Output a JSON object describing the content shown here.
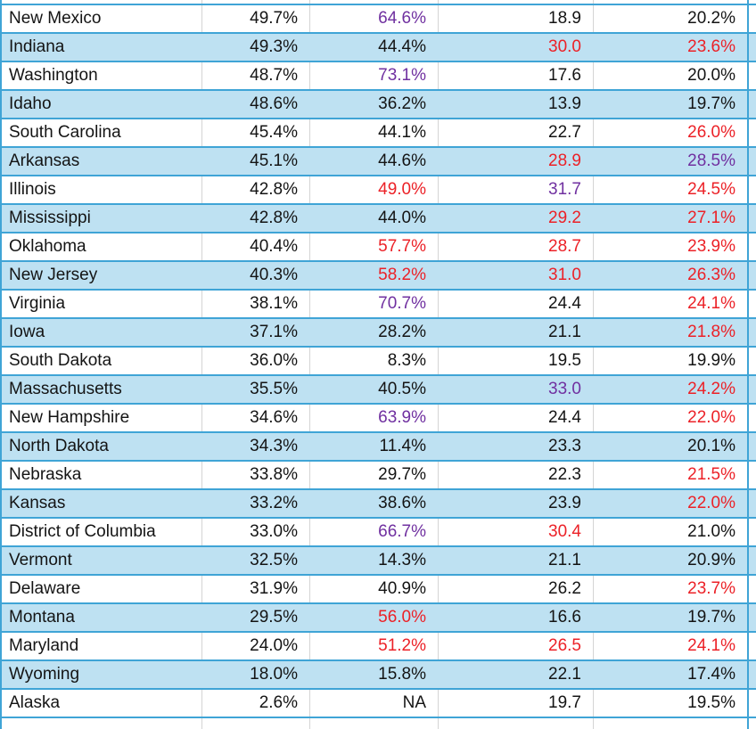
{
  "colors": {
    "row_alt_fill": "#BEE1F2",
    "grid_blue": "#3FA4D6",
    "grid_gray": "#D4D4D4",
    "text_black": "#141414",
    "text_red": "#EC2127",
    "text_purple": "#7030A0"
  },
  "table": {
    "rows": [
      {
        "state": "New Mexico",
        "cells": [
          {
            "v": "49.7%",
            "c": "black"
          },
          {
            "v": "64.6%",
            "c": "purple"
          },
          {
            "v": "18.9",
            "c": "black"
          },
          {
            "v": "20.2%",
            "c": "black"
          }
        ]
      },
      {
        "state": "Indiana",
        "cells": [
          {
            "v": "49.3%",
            "c": "black"
          },
          {
            "v": "44.4%",
            "c": "black"
          },
          {
            "v": "30.0",
            "c": "red"
          },
          {
            "v": "23.6%",
            "c": "red"
          }
        ]
      },
      {
        "state": "Washington",
        "cells": [
          {
            "v": "48.7%",
            "c": "black"
          },
          {
            "v": "73.1%",
            "c": "purple"
          },
          {
            "v": "17.6",
            "c": "black"
          },
          {
            "v": "20.0%",
            "c": "black"
          }
        ]
      },
      {
        "state": "Idaho",
        "cells": [
          {
            "v": "48.6%",
            "c": "black"
          },
          {
            "v": "36.2%",
            "c": "black"
          },
          {
            "v": "13.9",
            "c": "black"
          },
          {
            "v": "19.7%",
            "c": "black"
          }
        ]
      },
      {
        "state": "South Carolina",
        "cells": [
          {
            "v": "45.4%",
            "c": "black"
          },
          {
            "v": "44.1%",
            "c": "black"
          },
          {
            "v": "22.7",
            "c": "black"
          },
          {
            "v": "26.0%",
            "c": "red"
          }
        ]
      },
      {
        "state": "Arkansas",
        "cells": [
          {
            "v": "45.1%",
            "c": "black"
          },
          {
            "v": "44.6%",
            "c": "black"
          },
          {
            "v": "28.9",
            "c": "red"
          },
          {
            "v": "28.5%",
            "c": "purple"
          }
        ]
      },
      {
        "state": "Illinois",
        "cells": [
          {
            "v": "42.8%",
            "c": "black"
          },
          {
            "v": "49.0%",
            "c": "red"
          },
          {
            "v": "31.7",
            "c": "purple"
          },
          {
            "v": "24.5%",
            "c": "red"
          }
        ]
      },
      {
        "state": "Mississippi",
        "cells": [
          {
            "v": "42.8%",
            "c": "black"
          },
          {
            "v": "44.0%",
            "c": "black"
          },
          {
            "v": "29.2",
            "c": "red"
          },
          {
            "v": "27.1%",
            "c": "red"
          }
        ]
      },
      {
        "state": "Oklahoma",
        "cells": [
          {
            "v": "40.4%",
            "c": "black"
          },
          {
            "v": "57.7%",
            "c": "red"
          },
          {
            "v": "28.7",
            "c": "red"
          },
          {
            "v": "23.9%",
            "c": "red"
          }
        ]
      },
      {
        "state": "New Jersey",
        "cells": [
          {
            "v": "40.3%",
            "c": "black"
          },
          {
            "v": "58.2%",
            "c": "red"
          },
          {
            "v": "31.0",
            "c": "red"
          },
          {
            "v": "26.3%",
            "c": "red"
          }
        ]
      },
      {
        "state": "Virginia",
        "cells": [
          {
            "v": "38.1%",
            "c": "black"
          },
          {
            "v": "70.7%",
            "c": "purple"
          },
          {
            "v": "24.4",
            "c": "black"
          },
          {
            "v": "24.1%",
            "c": "red"
          }
        ]
      },
      {
        "state": "Iowa",
        "cells": [
          {
            "v": "37.1%",
            "c": "black"
          },
          {
            "v": "28.2%",
            "c": "black"
          },
          {
            "v": "21.1",
            "c": "black"
          },
          {
            "v": "21.8%",
            "c": "red"
          }
        ]
      },
      {
        "state": "South Dakota",
        "cells": [
          {
            "v": "36.0%",
            "c": "black"
          },
          {
            "v": "8.3%",
            "c": "black"
          },
          {
            "v": "19.5",
            "c": "black"
          },
          {
            "v": "19.9%",
            "c": "black"
          }
        ]
      },
      {
        "state": "Massachusetts",
        "cells": [
          {
            "v": "35.5%",
            "c": "black"
          },
          {
            "v": "40.5%",
            "c": "black"
          },
          {
            "v": "33.0",
            "c": "purple"
          },
          {
            "v": "24.2%",
            "c": "red"
          }
        ]
      },
      {
        "state": "New Hampshire",
        "cells": [
          {
            "v": "34.6%",
            "c": "black"
          },
          {
            "v": "63.9%",
            "c": "purple"
          },
          {
            "v": "24.4",
            "c": "black"
          },
          {
            "v": "22.0%",
            "c": "red"
          }
        ]
      },
      {
        "state": "North Dakota",
        "cells": [
          {
            "v": "34.3%",
            "c": "black"
          },
          {
            "v": "11.4%",
            "c": "black"
          },
          {
            "v": "23.3",
            "c": "black"
          },
          {
            "v": "20.1%",
            "c": "black"
          }
        ]
      },
      {
        "state": "Nebraska",
        "cells": [
          {
            "v": "33.8%",
            "c": "black"
          },
          {
            "v": "29.7%",
            "c": "black"
          },
          {
            "v": "22.3",
            "c": "black"
          },
          {
            "v": "21.5%",
            "c": "red"
          }
        ]
      },
      {
        "state": "Kansas",
        "cells": [
          {
            "v": "33.2%",
            "c": "black"
          },
          {
            "v": "38.6%",
            "c": "black"
          },
          {
            "v": "23.9",
            "c": "black"
          },
          {
            "v": "22.0%",
            "c": "red"
          }
        ]
      },
      {
        "state": "District of Columbia",
        "cells": [
          {
            "v": "33.0%",
            "c": "black"
          },
          {
            "v": "66.7%",
            "c": "purple"
          },
          {
            "v": "30.4",
            "c": "red"
          },
          {
            "v": "21.0%",
            "c": "black"
          }
        ]
      },
      {
        "state": "Vermont",
        "cells": [
          {
            "v": "32.5%",
            "c": "black"
          },
          {
            "v": "14.3%",
            "c": "black"
          },
          {
            "v": "21.1",
            "c": "black"
          },
          {
            "v": "20.9%",
            "c": "black"
          }
        ]
      },
      {
        "state": "Delaware",
        "cells": [
          {
            "v": "31.9%",
            "c": "black"
          },
          {
            "v": "40.9%",
            "c": "black"
          },
          {
            "v": "26.2",
            "c": "black"
          },
          {
            "v": "23.7%",
            "c": "red"
          }
        ]
      },
      {
        "state": "Montana",
        "cells": [
          {
            "v": "29.5%",
            "c": "black"
          },
          {
            "v": "56.0%",
            "c": "red"
          },
          {
            "v": "16.6",
            "c": "black"
          },
          {
            "v": "19.7%",
            "c": "black"
          }
        ]
      },
      {
        "state": "Maryland",
        "cells": [
          {
            "v": "24.0%",
            "c": "black"
          },
          {
            "v": "51.2%",
            "c": "red"
          },
          {
            "v": "26.5",
            "c": "red"
          },
          {
            "v": "24.1%",
            "c": "red"
          }
        ]
      },
      {
        "state": "Wyoming",
        "cells": [
          {
            "v": "18.0%",
            "c": "black"
          },
          {
            "v": "15.8%",
            "c": "black"
          },
          {
            "v": "22.1",
            "c": "black"
          },
          {
            "v": "17.4%",
            "c": "black"
          }
        ]
      },
      {
        "state": "Alaska",
        "cells": [
          {
            "v": "2.6%",
            "c": "black"
          },
          {
            "v": "NA",
            "c": "black"
          },
          {
            "v": "19.7",
            "c": "black"
          },
          {
            "v": "19.5%",
            "c": "black"
          }
        ]
      }
    ]
  }
}
